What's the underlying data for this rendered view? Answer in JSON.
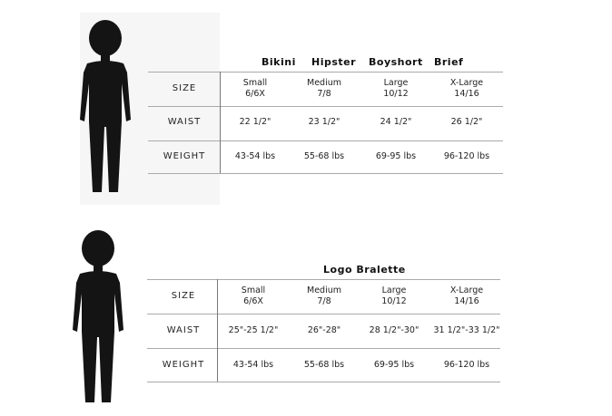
{
  "chart1": {
    "titles": [
      "Bikini",
      "Hipster",
      "Boyshort",
      "Brief"
    ],
    "rows": [
      {
        "label": "SIZE",
        "cells": [
          [
            "Small",
            "6/6X"
          ],
          [
            "Medium",
            "7/8"
          ],
          [
            "Large",
            "10/12"
          ],
          [
            "X-Large",
            "14/16"
          ]
        ]
      },
      {
        "label": "WAIST",
        "cells": [
          [
            "22 1/2\""
          ],
          [
            "23 1/2\""
          ],
          [
            "24 1/2\""
          ],
          [
            "26 1/2\""
          ]
        ]
      },
      {
        "label": "WEIGHT",
        "cells": [
          [
            "43-54 lbs"
          ],
          [
            "55-68 lbs"
          ],
          [
            "69-95 lbs"
          ],
          [
            "96-120 lbs"
          ]
        ]
      }
    ]
  },
  "chart2": {
    "title": "Logo Bralette",
    "rows": [
      {
        "label": "SIZE",
        "cells": [
          [
            "Small",
            "6/6X"
          ],
          [
            "Medium",
            "7/8"
          ],
          [
            "Large",
            "10/12"
          ],
          [
            "X-Large",
            "14/16"
          ]
        ]
      },
      {
        "label": "WAIST",
        "cells": [
          [
            "25\"-25 1/2\""
          ],
          [
            "26\"-28\""
          ],
          [
            "28 1/2\"-30\""
          ],
          [
            "31 1/2\"-33 1/2\""
          ]
        ]
      },
      {
        "label": "WEIGHT",
        "cells": [
          [
            "43-54 lbs"
          ],
          [
            "55-68 lbs"
          ],
          [
            "69-95 lbs"
          ],
          [
            "96-120 lbs"
          ]
        ]
      }
    ]
  },
  "colors": {
    "silhouette": "#141414",
    "figure_background": "#f6f6f6"
  }
}
